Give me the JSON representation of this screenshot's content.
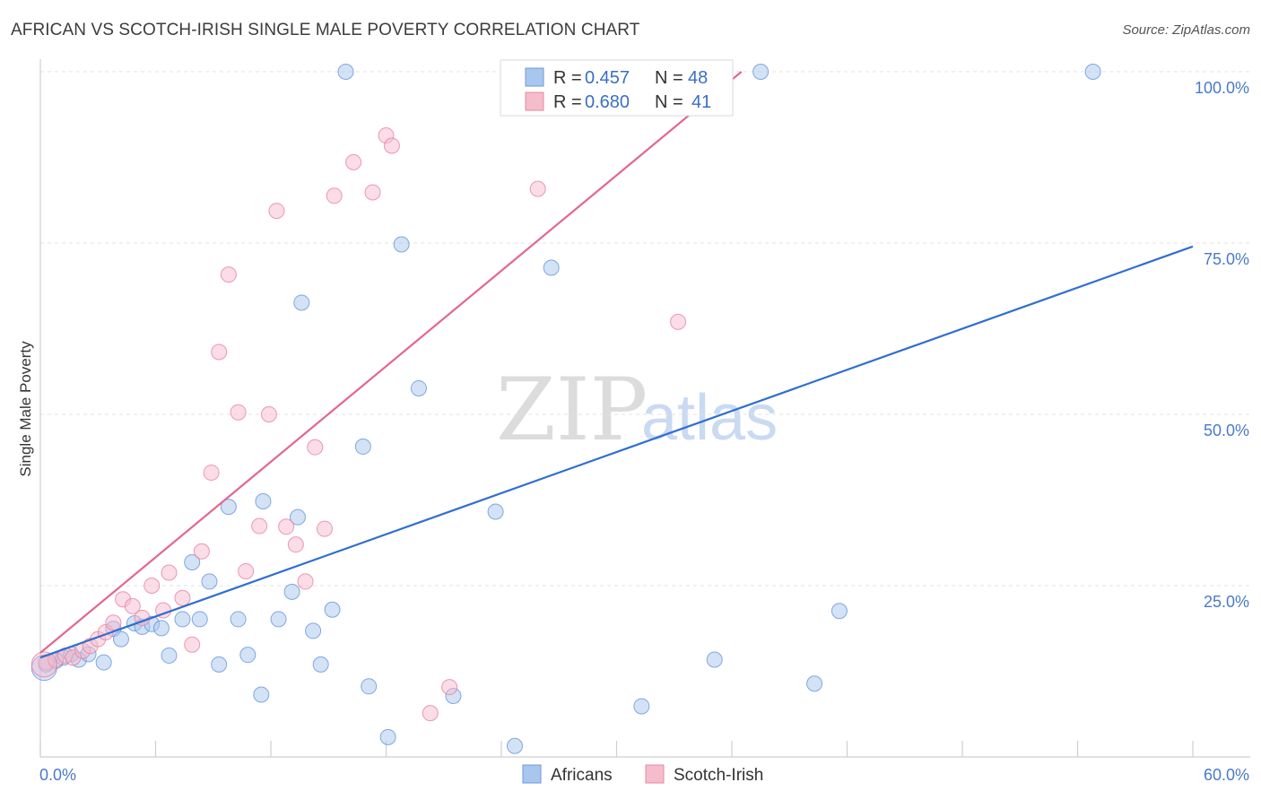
{
  "chart_data": {
    "type": "scatter",
    "title": "AFRICAN VS SCOTCH-IRISH SINGLE MALE POVERTY CORRELATION CHART",
    "source": "Source: ZipAtlas.com",
    "ylabel": "Single Male Poverty",
    "xlabel": "",
    "xlim": [
      0,
      60
    ],
    "ylim": [
      0,
      104
    ],
    "x_tick_labels": [
      "0.0%",
      "60.0%"
    ],
    "y_ticks": [
      25,
      50,
      75,
      100
    ],
    "y_tick_labels": [
      "25.0%",
      "50.0%",
      "75.0%",
      "100.0%"
    ],
    "watermark": {
      "zip": "ZIP",
      "atlas": "atlas"
    },
    "legend": {
      "r_label": "R =",
      "n_label": "N =",
      "entries": [
        {
          "r": "0.457",
          "n": "48"
        },
        {
          "r": "0.680",
          "n": "41"
        }
      ]
    },
    "series": [
      {
        "name": "Africans",
        "color": "#5b8fd8",
        "fill": "#a9c6ee",
        "trend": {
          "x0": 0,
          "y0": 14.5,
          "x1": 60,
          "y1": 74.5
        },
        "points": [
          [
            0.3,
            13.5
          ],
          [
            0.8,
            14
          ],
          [
            1.2,
            14.5
          ],
          [
            1.6,
            15
          ],
          [
            2.0,
            14.2
          ],
          [
            2.5,
            15
          ],
          [
            3.3,
            13.8
          ],
          [
            3.8,
            18.7
          ],
          [
            4.2,
            17.2
          ],
          [
            4.9,
            19.5
          ],
          [
            5.3,
            19
          ],
          [
            5.8,
            19.4
          ],
          [
            6.3,
            18.8
          ],
          [
            6.7,
            14.8
          ],
          [
            7.4,
            20.1
          ],
          [
            7.9,
            28.4
          ],
          [
            8.3,
            20.1
          ],
          [
            8.8,
            25.6
          ],
          [
            9.3,
            13.5
          ],
          [
            9.8,
            36.5
          ],
          [
            10.3,
            20.1
          ],
          [
            10.8,
            14.9
          ],
          [
            11.5,
            9.1
          ],
          [
            11.6,
            37.3
          ],
          [
            12.4,
            20.1
          ],
          [
            13.1,
            24.1
          ],
          [
            13.4,
            35
          ],
          [
            13.6,
            66.3
          ],
          [
            14.2,
            18.4
          ],
          [
            14.6,
            13.5
          ],
          [
            15.2,
            21.5
          ],
          [
            15.9,
            100
          ],
          [
            16.8,
            45.3
          ],
          [
            17.1,
            10.3
          ],
          [
            18.1,
            2.9
          ],
          [
            18.8,
            74.8
          ],
          [
            19.7,
            53.8
          ],
          [
            21.5,
            8.9
          ],
          [
            23.7,
            35.8
          ],
          [
            24.7,
            1.6
          ],
          [
            26.6,
            71.4
          ],
          [
            31.3,
            7.4
          ],
          [
            35.1,
            14.2
          ],
          [
            37.5,
            100
          ],
          [
            40.3,
            10.7
          ],
          [
            41.6,
            21.3
          ],
          [
            54.8,
            100
          ],
          [
            0.2,
            13
          ]
        ]
      },
      {
        "name": "Scotch-Irish",
        "color": "#e8799a",
        "fill": "#f5bccd",
        "trend": {
          "x0": 0,
          "y0": 15.2,
          "x1": 36.5,
          "y1": 100
        },
        "points": [
          [
            0.3,
            13.8
          ],
          [
            0.8,
            14.2
          ],
          [
            1.3,
            14.8
          ],
          [
            1.7,
            14.5
          ],
          [
            2.2,
            15.5
          ],
          [
            2.6,
            16.2
          ],
          [
            3.0,
            17.2
          ],
          [
            3.4,
            18.2
          ],
          [
            3.8,
            19.6
          ],
          [
            4.3,
            23
          ],
          [
            4.8,
            22
          ],
          [
            5.3,
            20.3
          ],
          [
            5.8,
            25
          ],
          [
            6.4,
            21.4
          ],
          [
            6.7,
            26.9
          ],
          [
            7.4,
            23.2
          ],
          [
            7.9,
            16.4
          ],
          [
            8.4,
            30
          ],
          [
            8.9,
            41.5
          ],
          [
            9.3,
            59.1
          ],
          [
            9.8,
            70.4
          ],
          [
            10.3,
            50.3
          ],
          [
            10.7,
            27.1
          ],
          [
            11.4,
            33.7
          ],
          [
            11.9,
            50
          ],
          [
            12.3,
            79.7
          ],
          [
            12.8,
            33.6
          ],
          [
            13.3,
            31
          ],
          [
            13.8,
            25.6
          ],
          [
            14.3,
            45.2
          ],
          [
            14.8,
            33.3
          ],
          [
            15.3,
            81.9
          ],
          [
            16.3,
            86.8
          ],
          [
            17.3,
            82.4
          ],
          [
            18.0,
            90.7
          ],
          [
            18.3,
            89.2
          ],
          [
            20.3,
            6.4
          ],
          [
            21.3,
            10.2
          ],
          [
            25.9,
            82.9
          ],
          [
            33.2,
            63.5
          ],
          [
            0.2,
            13.5
          ]
        ]
      }
    ]
  }
}
